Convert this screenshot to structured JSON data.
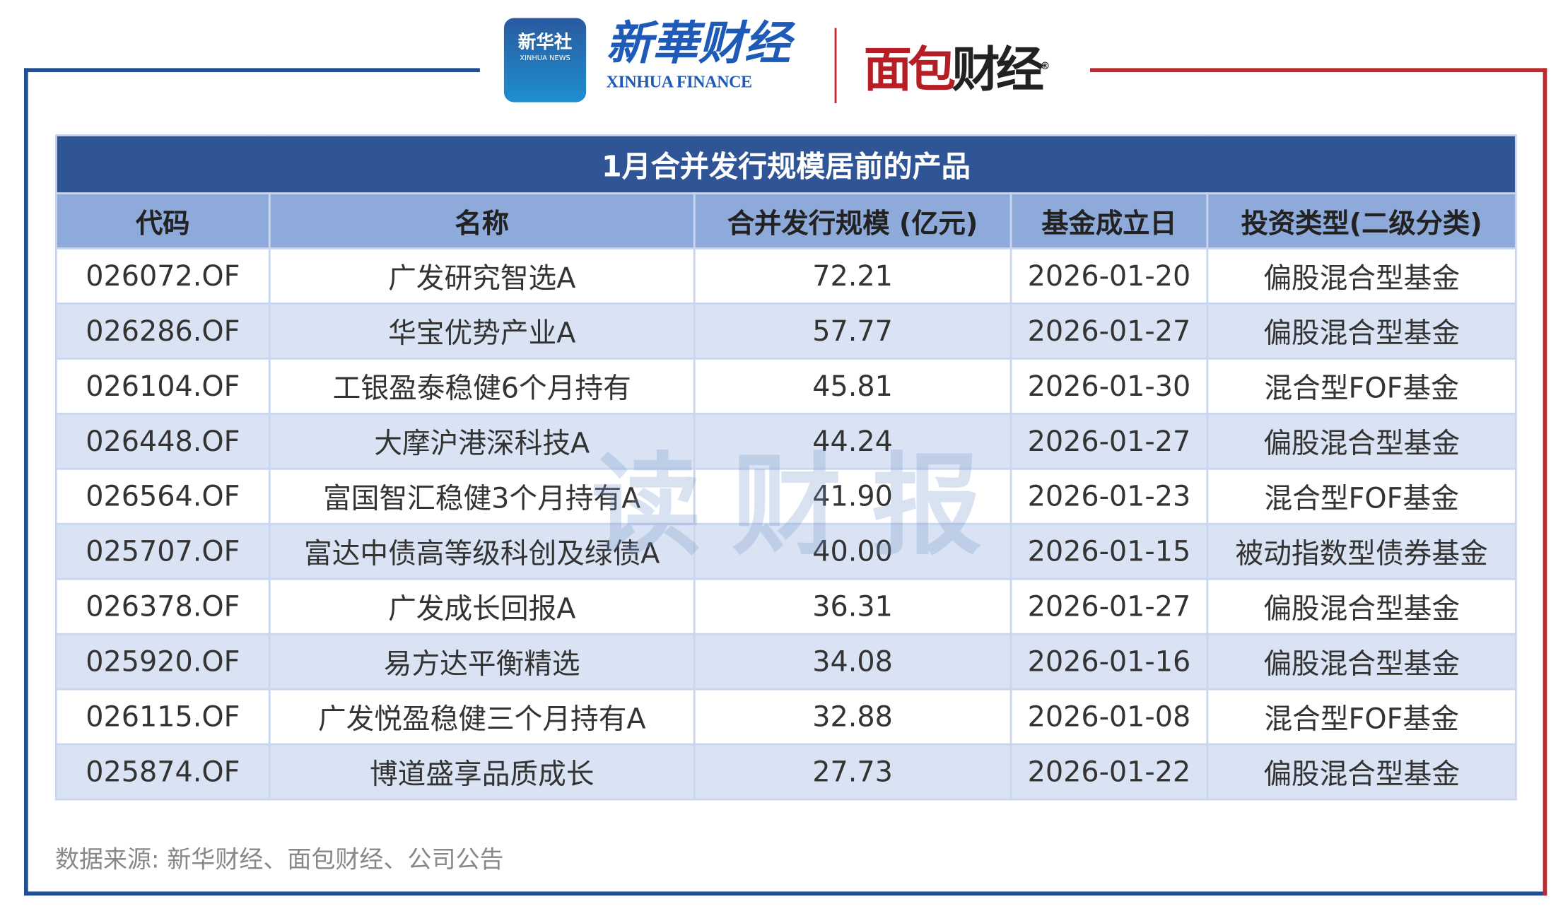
{
  "logos": {
    "xinhua_news_cn": "新华社",
    "xinhua_news_en": "XINHUA NEWS",
    "xinhua_finance_cn": "新華财经",
    "xinhua_finance_en": "XINHUA FINANCE",
    "mianbao_a": "面包",
    "mianbao_b": "财经",
    "registered": "®"
  },
  "colors": {
    "left_frame": "#1f4e96",
    "right_frame": "#c0282e",
    "title_bg": "#2f5597",
    "header_bg": "#8eaadb",
    "stripe": "#dae3f3"
  },
  "table": {
    "title": "1月合并发行规模居前的产品",
    "columns": [
      "代码",
      "名称",
      "合并发行规模 (亿元)",
      "基金成立日",
      "投资类型(二级分类)"
    ],
    "rows": [
      [
        "026072.OF",
        "广发研究智选A",
        "72.21",
        "2026-01-20",
        "偏股混合型基金"
      ],
      [
        "026286.OF",
        "华宝优势产业A",
        "57.77",
        "2026-01-27",
        "偏股混合型基金"
      ],
      [
        "026104.OF",
        "工银盈泰稳健6个月持有",
        "45.81",
        "2026-01-30",
        "混合型FOF基金"
      ],
      [
        "026448.OF",
        "大摩沪港深科技A",
        "44.24",
        "2026-01-27",
        "偏股混合型基金"
      ],
      [
        "026564.OF",
        "富国智汇稳健3个月持有A",
        "41.90",
        "2026-01-23",
        "混合型FOF基金"
      ],
      [
        "025707.OF",
        "富达中债高等级科创及绿债A",
        "40.00",
        "2026-01-15",
        "被动指数型债券基金"
      ],
      [
        "026378.OF",
        "广发成长回报A",
        "36.31",
        "2026-01-27",
        "偏股混合型基金"
      ],
      [
        "025920.OF",
        "易方达平衡精选",
        "34.08",
        "2026-01-16",
        "偏股混合型基金"
      ],
      [
        "026115.OF",
        "广发悦盈稳健三个月持有A",
        "32.88",
        "2026-01-08",
        "混合型FOF基金"
      ],
      [
        "025874.OF",
        "博道盛享品质成长",
        "27.73",
        "2026-01-22",
        "偏股混合型基金"
      ]
    ]
  },
  "watermark": "读财报",
  "source": "数据来源: 新华财经、面包财经、公司公告"
}
